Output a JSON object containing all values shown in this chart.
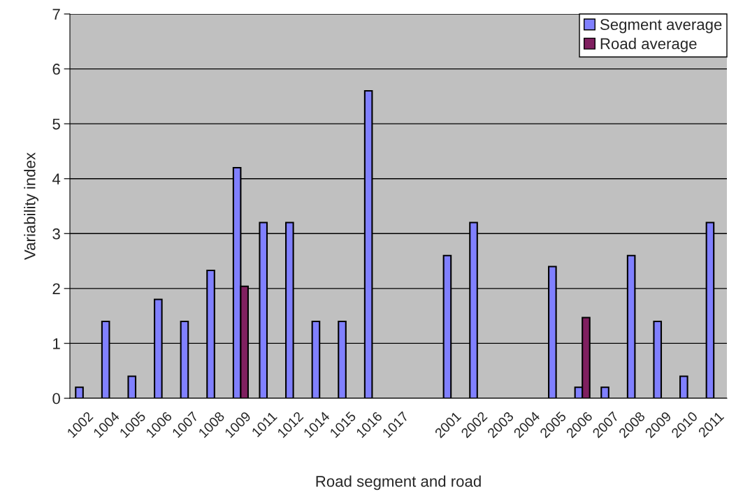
{
  "chart_data": {
    "type": "bar",
    "xlabel": "Road segment and road",
    "ylabel": "Variability index",
    "categories": [
      "1002",
      "1004",
      "1005",
      "1006",
      "1007",
      "1008",
      "1009",
      "1011",
      "1012",
      "1014",
      "1015",
      "1016",
      "1017",
      null,
      "2001",
      "2002",
      "2003",
      "2004",
      "2005",
      "2006",
      "2007",
      "2008",
      "2009",
      "2010",
      "2011"
    ],
    "series": [
      {
        "name": "Segment average",
        "color": "#8080ff",
        "values": [
          0.2,
          1.4,
          0.4,
          1.8,
          1.4,
          2.33,
          4.2,
          3.2,
          3.2,
          1.4,
          1.4,
          5.6,
          null,
          null,
          2.6,
          3.2,
          null,
          null,
          2.4,
          0.2,
          0.2,
          2.6,
          1.4,
          0.4,
          3.2
        ]
      },
      {
        "name": "Road average",
        "color": "#802060",
        "values": [
          null,
          null,
          null,
          null,
          null,
          null,
          2.04,
          null,
          null,
          null,
          null,
          null,
          null,
          null,
          null,
          null,
          null,
          null,
          null,
          1.47,
          null,
          null,
          null,
          null,
          null
        ]
      }
    ],
    "ylim": [
      0,
      7
    ],
    "yticks": [
      0,
      1,
      2,
      3,
      4,
      5,
      6,
      7
    ],
    "grid": "y",
    "legend": "top right"
  }
}
